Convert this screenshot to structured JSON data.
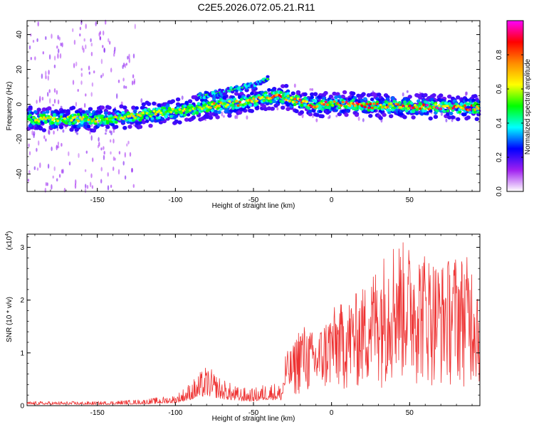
{
  "title": "C2E5.2026.072.05.21.R11",
  "chart_data": [
    {
      "type": "heatmap",
      "title": "C2E5.2026.072.05.21.R11",
      "xlabel": "Height of straight line (km)",
      "ylabel": "Frequency (Hz)",
      "xlim": [
        -195,
        95
      ],
      "ylim": [
        -50,
        48
      ],
      "x_ticks": [
        -150,
        -100,
        -50,
        0,
        50
      ],
      "y_ticks": [
        -40,
        -20,
        0,
        20,
        40
      ],
      "grid": false,
      "ridge": {
        "x": [
          -195,
          -170,
          -150,
          -140,
          -130,
          -120,
          -110,
          -100,
          -90,
          -80,
          -70,
          -60,
          -50,
          -40,
          -35,
          -30,
          -20,
          -10,
          0,
          10,
          20,
          30,
          40,
          50,
          60,
          70,
          80,
          90,
          95
        ],
        "y": [
          -8.5,
          -8.5,
          -8.5,
          -8,
          -7,
          -6,
          -5,
          -4,
          -3,
          -1.5,
          0,
          0.5,
          2,
          4,
          5,
          4,
          1.5,
          -0.5,
          0.5,
          0,
          -0.5,
          -1,
          -1,
          -1.5,
          -1.5,
          -1.5,
          -2,
          -2,
          -2
        ]
      },
      "side_branch": {
        "x": [
          -85,
          -75,
          -65,
          -55,
          -45,
          -40
        ],
        "y": [
          5,
          6,
          8,
          10,
          12,
          15
        ]
      },
      "colorbar": {
        "label": "Normalized spectral amplitude",
        "range": [
          0,
          1
        ],
        "ticks": [
          0.0,
          0.2,
          0.4,
          0.6,
          0.8
        ],
        "tick_labels": [
          "0.0",
          "0.2",
          "0.4",
          "0.6",
          "0.8"
        ],
        "colors": [
          "#ffffff",
          "#a020f0",
          "#0000ff",
          "#00ffff",
          "#00ff00",
          "#ffff00",
          "#ff8c00",
          "#ff0000",
          "#ff00ff"
        ]
      }
    },
    {
      "type": "line",
      "xlabel": "Height of straight line (km)",
      "ylabel": "SNR (10 * v/v)",
      "y_multiplier_label": "(x10",
      "y_multiplier_exp": "4",
      "y_multiplier_close": ")",
      "xlim": [
        -195,
        95
      ],
      "ylim": [
        0,
        3.25
      ],
      "x_ticks": [
        -150,
        -100,
        -50,
        0,
        50
      ],
      "y_ticks": [
        0,
        1,
        2,
        3
      ],
      "grid": false,
      "series_color": "#ee3333",
      "envelope": {
        "x": [
          -195,
          -150,
          -120,
          -100,
          -90,
          -80,
          -70,
          -60,
          -50,
          -40,
          -32,
          -30,
          -25,
          -20,
          -10,
          0,
          10,
          20,
          30,
          40,
          50,
          60,
          70,
          80,
          90,
          95
        ],
        "y": [
          0.08,
          0.08,
          0.12,
          0.2,
          0.45,
          0.75,
          0.5,
          0.35,
          0.32,
          0.45,
          0.4,
          1.0,
          1.1,
          1.6,
          1.35,
          1.85,
          2.0,
          2.25,
          2.75,
          3.2,
          3.05,
          2.95,
          2.7,
          2.9,
          2.8,
          2.4
        ]
      }
    }
  ]
}
